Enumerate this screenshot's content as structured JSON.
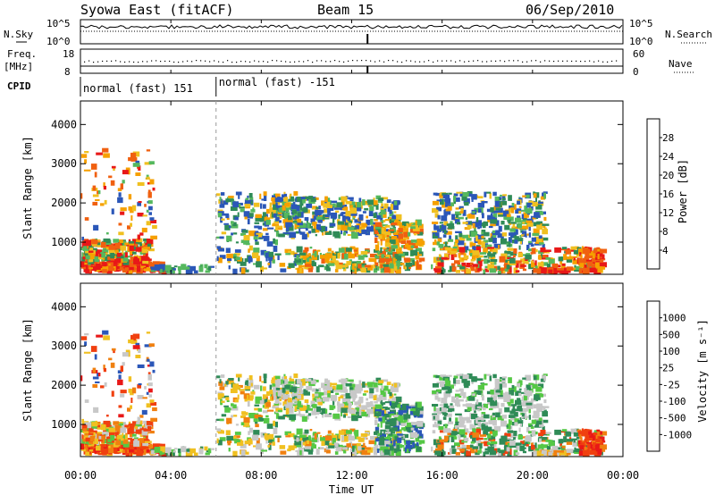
{
  "header": {
    "station": "Syowa East (fitACF)",
    "beam": "Beam 15",
    "date": "06/Sep/2010"
  },
  "summary_panel": {
    "left_labels": {
      "nsky": "N.Sky",
      "nsky_ticks": [
        "10^5",
        "10^0"
      ],
      "freq": "Freq.",
      "freq_unit": "[MHz]",
      "freq_ticks": [
        "18",
        "8"
      ],
      "cpid": "CPID"
    },
    "right_labels": {
      "nsearch": "N.Search",
      "nsearch_ticks": [
        "10^5",
        "10^0"
      ],
      "nave": "Nave",
      "nave_ticks": [
        "60",
        "0"
      ]
    },
    "cpid_segments": [
      {
        "label": "normal (fast) 151",
        "start_hour": 0,
        "end_hour": 6
      },
      {
        "label": "normal (fast) -151",
        "start_hour": 6,
        "end_hour": 24
      }
    ]
  },
  "axes": {
    "x_label": "Time UT",
    "x_ticks": [
      "00:00",
      "04:00",
      "08:00",
      "12:00",
      "16:00",
      "20:00",
      "00:00"
    ],
    "x_tick_hours": [
      0,
      4,
      8,
      12,
      16,
      20,
      24
    ],
    "x_range": [
      0,
      24
    ],
    "y_label": "Slant Range [km]",
    "y_ticks": [
      "1000",
      "2000",
      "3000",
      "4000"
    ],
    "y_tick_values": [
      1000,
      2000,
      3000,
      4000
    ],
    "y_range": [
      180,
      4600
    ]
  },
  "chart_data": [
    {
      "type": "heatmap",
      "name": "power",
      "ylabel": "Slant Range [km]",
      "colorbar_label": "Power [dB]",
      "colorbar_ticks": [
        "4",
        "8",
        "12",
        "16",
        "20",
        "24",
        "28"
      ],
      "colorbar_colors": [
        "#1a1aff",
        "#2b57b8",
        "#2f8b57",
        "#55b85e",
        "#f0c020",
        "#f6a000",
        "#f06010",
        "#e81818"
      ],
      "x_range": [
        0,
        24
      ],
      "y_range": [
        180,
        4600
      ]
    },
    {
      "type": "heatmap",
      "name": "velocity",
      "ylabel": "Slant Range [km]",
      "colorbar_label": "Velocity [m s⁻¹]",
      "colorbar_ticks": [
        "1000",
        "500",
        "100",
        "25",
        "-25",
        "-100",
        "-500",
        "-1000"
      ],
      "colorbar_colors": [
        "#1a1aff",
        "#2b57b8",
        "#2f8b57",
        "#55c845",
        "#c8c8c8",
        "#f0c020",
        "#f08010",
        "#f04010",
        "#e81818"
      ],
      "x_range": [
        0,
        24
      ],
      "y_range": [
        180,
        4600
      ]
    }
  ]
}
